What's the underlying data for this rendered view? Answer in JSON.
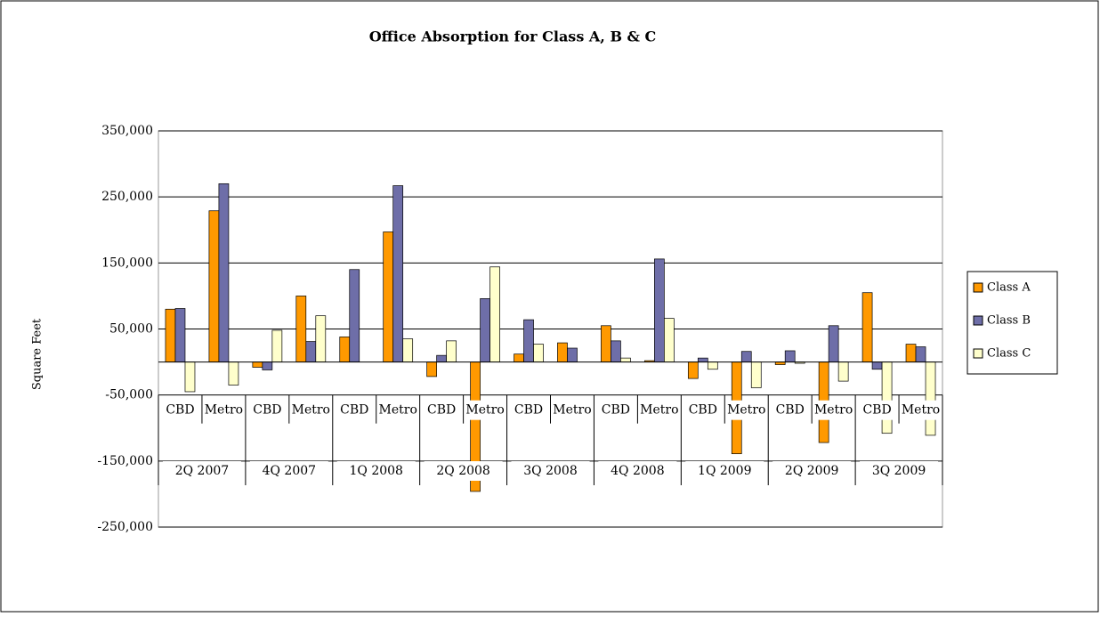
{
  "chart_data": {
    "type": "bar",
    "title": "Office Absorption for Class A, B & C",
    "y_label": "Square Feet",
    "categories": [
      "CBD",
      "Metro",
      "CBD",
      "Metro",
      "CBD",
      "Metro",
      "CBD",
      "Metro",
      "CBD",
      "Metro",
      "CBD",
      "Metro",
      "CBD",
      "Metro",
      "CBD",
      "Metro",
      "CBD",
      "Metro"
    ],
    "groups": [
      "2Q 2007",
      "4Q 2007",
      "1Q 2008",
      "2Q 2008",
      "3Q 2008",
      "4Q 2008",
      "1Q 2009",
      "2Q 2009",
      "3Q 2009"
    ],
    "series": [
      {
        "name": "Class A",
        "color": "#ff9900",
        "values": [
          80000,
          229000,
          -8000,
          100000,
          38000,
          197000,
          -22000,
          -196000,
          12000,
          29000,
          55000,
          2000,
          -25000,
          -139000,
          -4000,
          -122000,
          105000,
          27000
        ]
      },
      {
        "name": "Class B",
        "color": "#6e6ea8",
        "values": [
          81000,
          270000,
          -12000,
          31000,
          140000,
          267000,
          10000,
          96000,
          64000,
          21000,
          32000,
          156000,
          6000,
          16000,
          17000,
          55000,
          -11000,
          23000
        ]
      },
      {
        "name": "Class C",
        "color": "#ffffcc",
        "values": [
          -45000,
          -35000,
          48000,
          70000,
          0,
          35000,
          32000,
          144000,
          27000,
          0,
          6000,
          66000,
          -11000,
          -39000,
          -2000,
          -29000,
          -108000,
          -111000
        ]
      }
    ],
    "ylim": [
      -250000,
      350000
    ],
    "yticks": [
      {
        "value": 350000,
        "label": "350,000"
      },
      {
        "value": 250000,
        "label": "250,000"
      },
      {
        "value": 150000,
        "label": "150,000"
      },
      {
        "value": 50000,
        "label": "50,000"
      },
      {
        "value": -50000,
        "label": "-50,000"
      },
      {
        "value": -150000,
        "label": "-150,000"
      },
      {
        "value": -250000,
        "label": "-250,000"
      }
    ],
    "grid": true,
    "legend": "right"
  }
}
